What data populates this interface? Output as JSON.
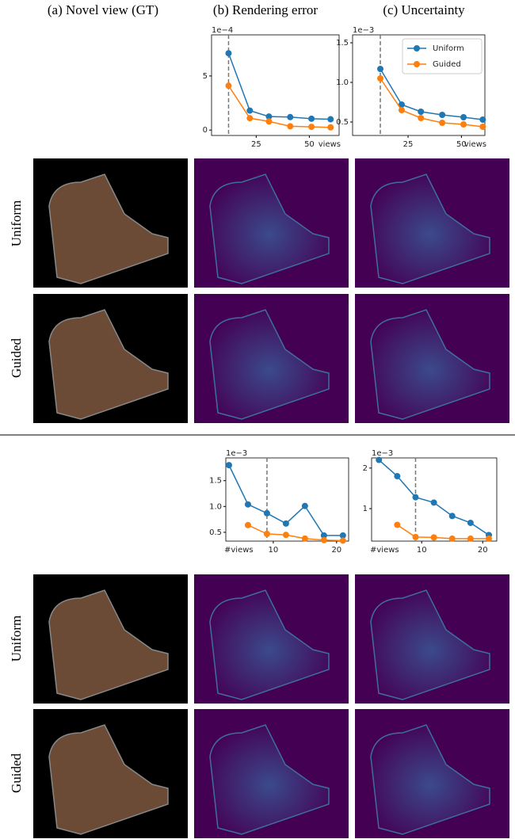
{
  "column_titles": [
    "(a) Novel view (GT)",
    "(b) Rendering error",
    "(c) Uncertainty"
  ],
  "sections": [
    {
      "row_labels": [
        "Uniform",
        "Guided"
      ]
    },
    {
      "row_labels": [
        "Uniform",
        "Guided"
      ]
    }
  ],
  "chart_data": [
    {
      "type": "line",
      "scale_label": "1e−4",
      "xlabel": "views",
      "x": [
        12,
        22,
        31,
        41,
        51,
        60
      ],
      "xlim": [
        4,
        64
      ],
      "xticks": [
        25,
        50
      ],
      "ylim": [
        -0.5,
        8.8
      ],
      "yticks": [
        0,
        5
      ],
      "vline": 12,
      "series": [
        {
          "name": "Uniform",
          "color": "#1f77b4",
          "values": [
            7.1,
            1.8,
            1.25,
            1.2,
            1.05,
            1.0
          ]
        },
        {
          "name": "Guided",
          "color": "#ff7f0e",
          "values": [
            4.1,
            1.1,
            0.8,
            0.35,
            0.3,
            0.25
          ]
        }
      ]
    },
    {
      "type": "line",
      "scale_label": "1e−3",
      "xlabel": "views",
      "x": [
        12,
        22,
        31,
        41,
        51,
        60
      ],
      "xlim": [
        -1,
        61
      ],
      "xticks": [
        25,
        50
      ],
      "ylim": [
        0.33,
        1.6
      ],
      "yticks": [
        0.5,
        {
          "value": 1,
          "label": "1.0"
        },
        1.5
      ],
      "vline": 12,
      "legend": "upper right",
      "series": [
        {
          "name": "Uniform",
          "color": "#1f77b4",
          "values": [
            1.17,
            0.72,
            0.63,
            0.59,
            0.56,
            0.53
          ]
        },
        {
          "name": "Guided",
          "color": "#ff7f0e",
          "values": [
            1.05,
            0.65,
            0.55,
            0.49,
            0.47,
            0.44
          ]
        }
      ]
    },
    {
      "type": "line",
      "scale_label": "1e−3",
      "xlabel": "#views",
      "x": [
        3,
        6,
        9,
        12,
        15,
        18,
        21
      ],
      "xlim": [
        2.5,
        21.9
      ],
      "xticks": [
        10,
        20
      ],
      "ylim": [
        0.33,
        1.94
      ],
      "yticks": [
        0.5,
        {
          "value": 1,
          "label": "1.0"
        },
        1.5
      ],
      "vline": 9,
      "series": [
        {
          "name": "Uniform",
          "color": "#1f77b4",
          "values": [
            1.8,
            1.04,
            0.87,
            0.67,
            1.01,
            0.44,
            0.44
          ]
        },
        {
          "name": "Guided",
          "color": "#ff7f0e",
          "values": [
            null,
            0.64,
            0.47,
            0.45,
            0.38,
            0.35,
            0.34
          ]
        }
      ]
    },
    {
      "type": "line",
      "scale_label": "1e−3",
      "xlabel": "#views",
      "x": [
        3,
        6,
        9,
        12,
        15,
        18,
        21
      ],
      "xlim": [
        1.8,
        22.3
      ],
      "xticks": [
        10,
        20
      ],
      "ylim": [
        0.2,
        2.25
      ],
      "yticks": [
        1,
        2
      ],
      "vline": 9,
      "series": [
        {
          "name": "Uniform",
          "color": "#1f77b4",
          "values": [
            2.2,
            1.8,
            1.28,
            1.15,
            0.82,
            0.65,
            0.35
          ]
        },
        {
          "name": "Guided",
          "color": "#ff7f0e",
          "values": [
            null,
            0.6,
            0.3,
            0.29,
            0.26,
            0.26,
            0.26
          ]
        }
      ]
    }
  ]
}
